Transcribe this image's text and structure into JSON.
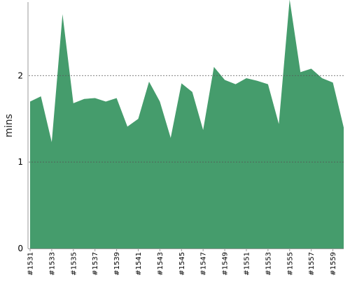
{
  "chart_data": {
    "type": "area",
    "title": "",
    "xlabel": "",
    "ylabel": "mins",
    "ylim": [
      0,
      2.85
    ],
    "y_ticks": [
      0,
      1,
      2
    ],
    "grid": "horizontal dashed at y ticks",
    "legend": "none",
    "fill_color": "#459c6c",
    "grid_color": "#555555",
    "axis_color": "#9a9a9a",
    "tick_label_color": "#000000",
    "x_tick_labels": [
      "#1531",
      "#1533",
      "#1535",
      "#1537",
      "#1539",
      "#1541",
      "#1543",
      "#1545",
      "#1547",
      "#1549",
      "#1551",
      "#1553",
      "#1555",
      "#1557",
      "#1559"
    ],
    "x": [
      "#1531",
      "#1532",
      "#1533",
      "#1534",
      "#1535",
      "#1536",
      "#1537",
      "#1538",
      "#1539",
      "#1540",
      "#1541",
      "#1542",
      "#1543",
      "#1544",
      "#1545",
      "#1546",
      "#1547",
      "#1548",
      "#1549",
      "#1550",
      "#1551",
      "#1552",
      "#1553",
      "#1554",
      "#1555",
      "#1556",
      "#1557",
      "#1558",
      "#1559",
      "#1560"
    ],
    "series": [
      {
        "values": [
          1.7,
          1.76,
          1.23,
          2.71,
          1.68,
          1.73,
          1.74,
          1.7,
          1.74,
          1.41,
          1.5,
          1.93,
          1.7,
          1.28,
          1.91,
          1.81,
          1.37,
          2.1,
          1.95,
          1.9,
          1.97,
          1.94,
          1.9,
          1.44,
          2.88,
          2.04,
          2.08,
          1.97,
          1.92,
          1.4
        ]
      }
    ]
  }
}
